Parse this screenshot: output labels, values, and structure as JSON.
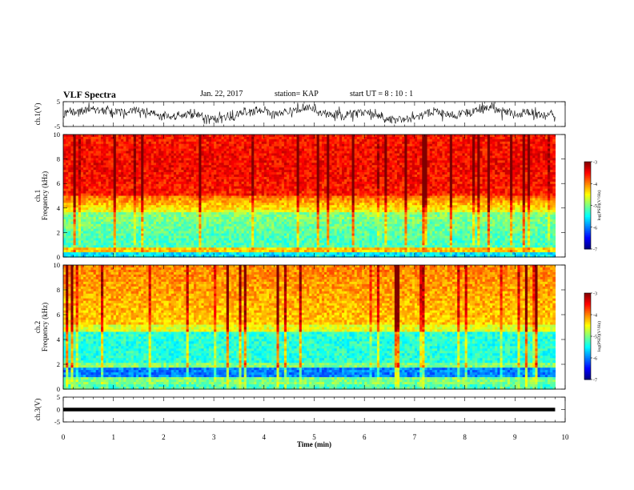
{
  "header": {
    "title": "VLF Spectra",
    "date": "Jan. 22, 2017",
    "station": "station= KAP",
    "start": "start  UT  =   8  : 10 : 1"
  },
  "chart_data": [
    {
      "type": "line",
      "panel": "ch1-waveform",
      "ylabel": "ch.1(V)",
      "ylim": [
        -5,
        5
      ],
      "yticks": [
        "5",
        "-5"
      ],
      "x_range_min": [
        0,
        9.8
      ],
      "color": "#000000"
    },
    {
      "type": "heatmap",
      "panel": "ch1-spectrogram",
      "ylabel": "ch.1\nFrequency (kHz)",
      "ylim": [
        0,
        10
      ],
      "yticks": [
        "0",
        "2",
        "4",
        "6",
        "8",
        "10"
      ],
      "x_range_min": [
        0,
        9.8
      ],
      "colorbar": {
        "label": "log(PSD)(V²/Hz)",
        "range": [
          -7,
          -3
        ],
        "ticks": [
          "-3",
          "-4",
          "-5",
          "-6",
          "-7"
        ]
      },
      "description": "High PSD (red, about -3.5) from 4 to 10 kHz, green/cyan (about -5 to -5.5) from 1 to 3.5 kHz"
    },
    {
      "type": "heatmap",
      "panel": "ch2-spectrogram",
      "ylabel": "ch.2\nFrequency (kHz)",
      "ylim": [
        0,
        10
      ],
      "yticks": [
        "0",
        "2",
        "4",
        "6",
        "8",
        "10"
      ],
      "x_range_min": [
        0,
        9.8
      ],
      "colorbar": {
        "label": "log(PSD)(V²/Hz)",
        "range": [
          -7,
          -3
        ],
        "ticks": [
          "-3",
          "-4",
          "-5",
          "-6",
          "-7"
        ]
      },
      "description": "Yellow/orange (about -4.3) from 5 to 10 kHz, green/cyan 2 to 4.5 kHz, blue (about -6) 1 to 1.7 kHz"
    },
    {
      "type": "line",
      "panel": "ch3-waveform",
      "ylabel": "ch.3(V)",
      "ylim": [
        -5,
        5
      ],
      "yticks": [
        "5",
        "0",
        "-5"
      ],
      "x_range_min": [
        0,
        9.8
      ],
      "constant_value": 0,
      "color": "#000000"
    }
  ],
  "xaxis": {
    "label": "Time (min)",
    "range": [
      0,
      10
    ],
    "ticks": [
      "0",
      "1",
      "2",
      "3",
      "4",
      "5",
      "6",
      "7",
      "8",
      "9",
      "10"
    ]
  }
}
